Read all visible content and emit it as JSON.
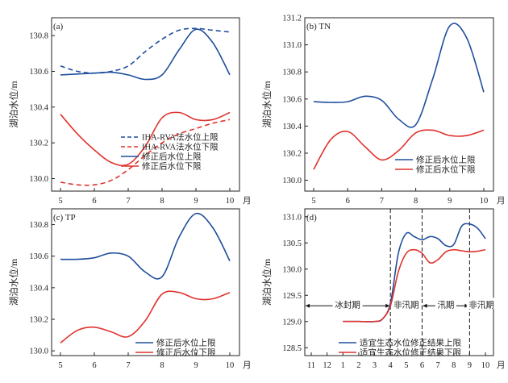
{
  "colors": {
    "blue": "#1f4e9c",
    "red": "#e0332d",
    "axis": "#222222"
  },
  "chart_data": [
    {
      "type": "line",
      "title": "(a)",
      "ylabel": "湖泊水位/m",
      "xlabel": "月",
      "x": [
        5,
        6,
        7,
        8,
        9,
        10
      ],
      "x_ticklabels": [
        "5",
        "6",
        "7",
        "8",
        "9",
        "10"
      ],
      "ylim": [
        129.93,
        130.9
      ],
      "yticks": [
        130.0,
        130.2,
        130.4,
        130.6,
        130.8
      ],
      "ytick_labels": [
        "130.0",
        "130.2",
        "130.4",
        "130.6",
        "130.8"
      ],
      "legend": "bottom-right",
      "series": [
        {
          "name": "IHA-RVA法水位上限",
          "color": "#1f4e9c",
          "style": "dashed",
          "points": [
            [
              5,
              130.63
            ],
            [
              5.5,
              130.6
            ],
            [
              6,
              130.59
            ],
            [
              6.5,
              130.6
            ],
            [
              7,
              130.63
            ],
            [
              7.5,
              130.71
            ],
            [
              8,
              130.78
            ],
            [
              8.5,
              130.83
            ],
            [
              9,
              130.84
            ],
            [
              9.5,
              130.83
            ],
            [
              10,
              130.82
            ]
          ]
        },
        {
          "name": "IHA-RVA法水位下限",
          "color": "#e0332d",
          "style": "dashed",
          "points": [
            [
              5,
              129.98
            ],
            [
              5.5,
              129.965
            ],
            [
              6,
              129.965
            ],
            [
              6.5,
              129.99
            ],
            [
              7,
              130.05
            ],
            [
              7.5,
              130.13
            ],
            [
              8,
              130.2
            ],
            [
              8.5,
              130.25
            ],
            [
              9,
              130.28
            ],
            [
              9.5,
              130.31
            ],
            [
              10,
              130.33
            ]
          ]
        },
        {
          "name": "修正后水位上限",
          "color": "#1f4e9c",
          "style": "solid",
          "points": [
            [
              5,
              130.58
            ],
            [
              5.5,
              130.585
            ],
            [
              6,
              130.59
            ],
            [
              6.5,
              130.595
            ],
            [
              7,
              130.58
            ],
            [
              7.5,
              130.555
            ],
            [
              8,
              130.58
            ],
            [
              8.5,
              130.72
            ],
            [
              9,
              130.835
            ],
            [
              9.5,
              130.76
            ],
            [
              10,
              130.58
            ]
          ]
        },
        {
          "name": "修正后水位下限",
          "color": "#e0332d",
          "style": "solid",
          "points": [
            [
              5,
              130.36
            ],
            [
              5.5,
              130.25
            ],
            [
              6,
              130.16
            ],
            [
              6.5,
              130.09
            ],
            [
              7,
              130.08
            ],
            [
              7.5,
              130.18
            ],
            [
              8,
              130.34
            ],
            [
              8.5,
              130.37
            ],
            [
              9,
              130.33
            ],
            [
              9.5,
              130.33
            ],
            [
              10,
              130.37
            ]
          ]
        }
      ]
    },
    {
      "type": "line",
      "title": "(b) TN",
      "ylabel": "湖泊水位/m",
      "xlabel": "月",
      "x": [
        5,
        6,
        7,
        8,
        9,
        10
      ],
      "x_ticklabels": [
        "5",
        "6",
        "7",
        "8",
        "9",
        "10"
      ],
      "ylim": [
        129.92,
        131.2
      ],
      "yticks": [
        130.0,
        130.2,
        130.4,
        130.6,
        130.8,
        131.0,
        131.2
      ],
      "ytick_labels": [
        "130.0",
        "130.2",
        "130.4",
        "130.6",
        "130.8",
        "131.0",
        "131.2"
      ],
      "legend": "bottom-right",
      "series": [
        {
          "name": "修正后水位上限",
          "color": "#1f4e9c",
          "style": "solid",
          "points": [
            [
              5,
              130.58
            ],
            [
              5.5,
              130.575
            ],
            [
              6,
              130.58
            ],
            [
              6.5,
              130.62
            ],
            [
              7,
              130.59
            ],
            [
              7.5,
              130.45
            ],
            [
              8,
              130.41
            ],
            [
              8.5,
              130.75
            ],
            [
              9,
              131.14
            ],
            [
              9.5,
              131.05
            ],
            [
              10,
              130.65
            ]
          ]
        },
        {
          "name": "修正后水位下限",
          "color": "#e0332d",
          "style": "solid",
          "points": [
            [
              5,
              130.08
            ],
            [
              5.5,
              130.3
            ],
            [
              6,
              130.36
            ],
            [
              6.5,
              130.25
            ],
            [
              7,
              130.15
            ],
            [
              7.5,
              130.22
            ],
            [
              8,
              130.35
            ],
            [
              8.5,
              130.37
            ],
            [
              9,
              130.33
            ],
            [
              9.5,
              130.33
            ],
            [
              10,
              130.37
            ]
          ]
        }
      ]
    },
    {
      "type": "line",
      "title": "(c) TP",
      "ylabel": "湖泊水位/m",
      "xlabel": "月",
      "x": [
        5,
        6,
        7,
        8,
        9,
        10
      ],
      "x_ticklabels": [
        "5",
        "6",
        "7",
        "8",
        "9",
        "10"
      ],
      "ylim": [
        129.97,
        130.9
      ],
      "yticks": [
        130.0,
        130.2,
        130.4,
        130.6,
        130.8
      ],
      "ytick_labels": [
        "130.0",
        "130.2",
        "130.4",
        "130.6",
        "130.8"
      ],
      "legend": "bottom-right",
      "series": [
        {
          "name": "修正后水位上限",
          "color": "#1f4e9c",
          "style": "solid",
          "points": [
            [
              5,
              130.58
            ],
            [
              5.5,
              130.58
            ],
            [
              6,
              130.59
            ],
            [
              6.5,
              130.62
            ],
            [
              7,
              130.6
            ],
            [
              7.5,
              130.5
            ],
            [
              8,
              130.47
            ],
            [
              8.5,
              130.72
            ],
            [
              9,
              130.87
            ],
            [
              9.5,
              130.78
            ],
            [
              10,
              130.57
            ]
          ]
        },
        {
          "name": "修正后水位下限",
          "color": "#e0332d",
          "style": "solid",
          "points": [
            [
              5,
              130.05
            ],
            [
              5.5,
              130.13
            ],
            [
              6,
              130.15
            ],
            [
              6.5,
              130.12
            ],
            [
              7,
              130.09
            ],
            [
              7.5,
              130.19
            ],
            [
              8,
              130.36
            ],
            [
              8.5,
              130.37
            ],
            [
              9,
              130.33
            ],
            [
              9.5,
              130.33
            ],
            [
              10,
              130.37
            ]
          ]
        }
      ]
    },
    {
      "type": "line",
      "title": "(d)",
      "ylabel": "湖泊水位/m",
      "xlabel": "月",
      "x": [
        11,
        12,
        1,
        2,
        3,
        4,
        5,
        6,
        7,
        8,
        9,
        10
      ],
      "x_ticklabels": [
        "11",
        "12",
        "1",
        "2",
        "3",
        "4",
        "5",
        "6",
        "7",
        "8",
        "9",
        "10"
      ],
      "ylim": [
        128.35,
        131.15
      ],
      "yticks": [
        128.5,
        129.0,
        129.5,
        130.0,
        130.5,
        131.0
      ],
      "ytick_labels": [
        "128.5",
        "129.0",
        "129.5",
        "130.0",
        "130.5",
        "131.0"
      ],
      "legend": "bottom-right",
      "series": [
        {
          "name": "适宜生态水位修正结果上限",
          "color": "#1f4e9c",
          "style": "solid",
          "points": [
            [
              1,
              129.0
            ],
            [
              2,
              129.0
            ],
            [
              3,
              129.0
            ],
            [
              3.5,
              129.05
            ],
            [
              4,
              129.35
            ],
            [
              4.5,
              130.3
            ],
            [
              5,
              130.68
            ],
            [
              5.5,
              130.62
            ],
            [
              6,
              130.56
            ],
            [
              6.5,
              130.62
            ],
            [
              7,
              130.58
            ],
            [
              7.5,
              130.45
            ],
            [
              8,
              130.47
            ],
            [
              8.5,
              130.82
            ],
            [
              9,
              130.86
            ],
            [
              9.5,
              130.78
            ],
            [
              10,
              130.58
            ]
          ]
        },
        {
          "name": "适宜生态水位修正结果下限",
          "color": "#e0332d",
          "style": "solid",
          "points": [
            [
              1,
              129.0
            ],
            [
              2,
              129.0
            ],
            [
              3,
              129.0
            ],
            [
              3.5,
              129.05
            ],
            [
              4,
              129.3
            ],
            [
              4.5,
              129.95
            ],
            [
              5,
              130.3
            ],
            [
              5.5,
              130.37
            ],
            [
              6,
              130.3
            ],
            [
              6.5,
              130.12
            ],
            [
              7,
              130.18
            ],
            [
              7.5,
              130.33
            ],
            [
              8,
              130.37
            ],
            [
              8.5,
              130.35
            ],
            [
              9,
              130.33
            ],
            [
              9.5,
              130.34
            ],
            [
              10,
              130.37
            ]
          ]
        }
      ],
      "periods": [
        {
          "label": "冰封期",
          "from": "11",
          "to": "4"
        },
        {
          "label": "非汛期",
          "from": "4",
          "to": "6"
        },
        {
          "label": "汛期",
          "from": "6",
          "to": "9"
        },
        {
          "label": "非汛期",
          "from": "9",
          "to": "10"
        }
      ]
    }
  ]
}
